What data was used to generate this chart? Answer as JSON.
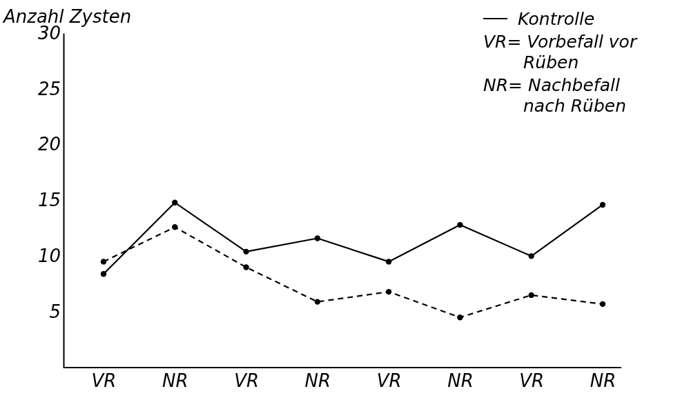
{
  "chart_data": {
    "type": "line",
    "ylabel": "Anzahl Zysten",
    "categories": [
      "VR",
      "NR",
      "VR",
      "NR",
      "VR",
      "NR",
      "VR",
      "NR"
    ],
    "series": [
      {
        "name": "Kontrolle",
        "color": "#000000",
        "line_style": "solid",
        "values": [
          8.4,
          14.8,
          10.4,
          11.6,
          9.5,
          12.8,
          10.0,
          14.6
        ]
      },
      {
        "color": "#000000",
        "line_style": "dashed",
        "values": [
          9.5,
          12.6,
          9.0,
          5.9,
          6.8,
          4.5,
          6.5,
          5.7
        ]
      }
    ],
    "ylim": [
      0,
      30
    ],
    "yticks": [
      5,
      10,
      15,
      20,
      25,
      30
    ],
    "grid": false,
    "marker": "circle",
    "legend": "top right",
    "annotations": [
      "VR= Vorbefall vor Rüben",
      "NR= Nachbefall nach Rüben"
    ]
  }
}
